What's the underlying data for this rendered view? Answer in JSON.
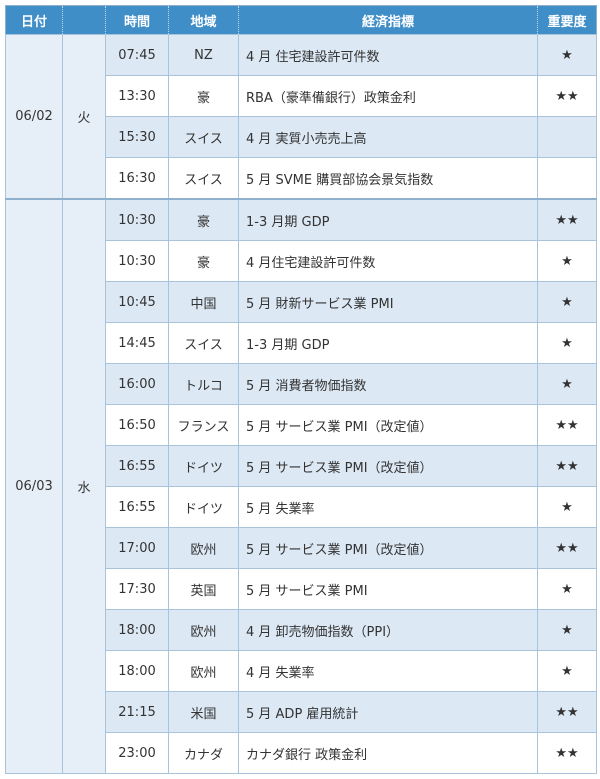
{
  "header": {
    "date": "日付",
    "day": "",
    "time": "時間",
    "region": "地域",
    "indicator": "経済指標",
    "importance": "重要度"
  },
  "colors": {
    "header_bg": "#3f8ec8",
    "row_alt_bg": "#dce8f4",
    "border": "#a9c3da"
  },
  "groups": [
    {
      "date": "06/02",
      "day": "火",
      "rows": [
        {
          "time": "07:45",
          "region": "NZ",
          "indicator": "4 月  住宅建設許可件数",
          "importance": "★"
        },
        {
          "time": "13:30",
          "region": "豪",
          "indicator": "RBA（豪準備銀行）政策金利",
          "importance": "★★"
        },
        {
          "time": "15:30",
          "region": "スイス",
          "indicator": "4 月  実質小売売上高",
          "importance": ""
        },
        {
          "time": "16:30",
          "region": "スイス",
          "indicator": "5 月  SVME 購買部協会景気指数",
          "importance": ""
        }
      ]
    },
    {
      "date": "06/03",
      "day": "水",
      "rows": [
        {
          "time": "10:30",
          "region": "豪",
          "indicator": "1-3 月期  GDP",
          "importance": "★★"
        },
        {
          "time": "10:30",
          "region": "豪",
          "indicator": "4 月住宅建設許可件数",
          "importance": "★"
        },
        {
          "time": "10:45",
          "region": "中国",
          "indicator": "5 月  財新サービス業 PMI",
          "importance": "★"
        },
        {
          "time": "14:45",
          "region": "スイス",
          "indicator": "1-3 月期  GDP",
          "importance": "★"
        },
        {
          "time": "16:00",
          "region": "トルコ",
          "indicator": "5 月  消費者物価指数",
          "importance": "★"
        },
        {
          "time": "16:50",
          "region": "フランス",
          "indicator": "5 月  サービス業 PMI（改定値）",
          "importance": "★★"
        },
        {
          "time": "16:55",
          "region": "ドイツ",
          "indicator": "5 月  サービス業 PMI（改定値）",
          "importance": "★★"
        },
        {
          "time": "16:55",
          "region": "ドイツ",
          "indicator": "5 月  失業率",
          "importance": "★"
        },
        {
          "time": "17:00",
          "region": "欧州",
          "indicator": "5 月  サービス業 PMI（改定値）",
          "importance": "★★"
        },
        {
          "time": "17:30",
          "region": "英国",
          "indicator": "5 月  サービス業 PMI",
          "importance": "★"
        },
        {
          "time": "18:00",
          "region": "欧州",
          "indicator": "4 月  卸売物価指数（PPI）",
          "importance": "★"
        },
        {
          "time": "18:00",
          "region": "欧州",
          "indicator": "4 月  失業率",
          "importance": "★"
        },
        {
          "time": "21:15",
          "region": "米国",
          "indicator": "5 月  ADP 雇用統計",
          "importance": "★★"
        },
        {
          "time": "23:00",
          "region": "カナダ",
          "indicator": "カナダ銀行  政策金利",
          "importance": "★★"
        }
      ]
    }
  ]
}
